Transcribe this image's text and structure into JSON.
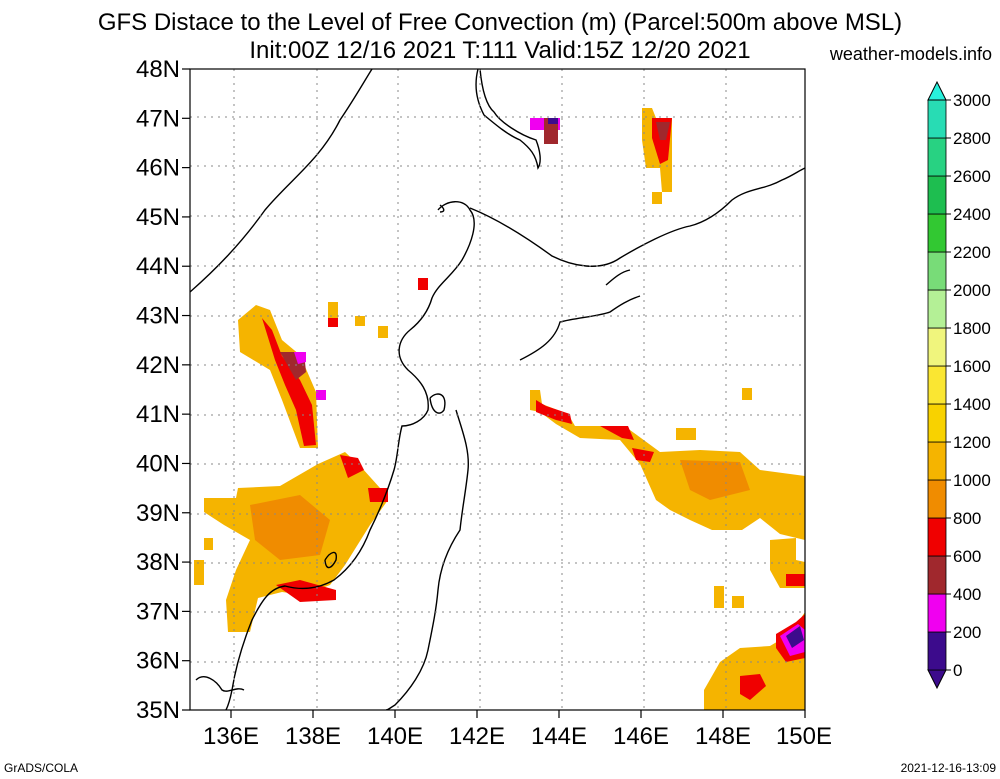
{
  "title_line1": "GFS Distace to the Level of Free Convection (m) (Parcel:500m above MSL)",
  "title_line2": "Init:00Z 12/16 2021 T:111 Valid:15Z 12/20 2021",
  "site": "weather-models.info",
  "footer_left": "GrADS/COLA",
  "footer_right": "2021-12-16-13:09",
  "lat_labels": [
    "48N",
    "47N",
    "46N",
    "45N",
    "44N",
    "43N",
    "42N",
    "41N",
    "40N",
    "39N",
    "38N",
    "37N",
    "36N",
    "35N"
  ],
  "lon_labels": [
    "136E",
    "138E",
    "140E",
    "142E",
    "144E",
    "146E",
    "148E"
  ],
  "lon_label_last": "150E",
  "colorbar": {
    "labels": [
      "0",
      "200",
      "400",
      "600",
      "800",
      "1000",
      "1200",
      "1400",
      "1600",
      "1800",
      "2000",
      "2200",
      "2400",
      "2600",
      "2800",
      "3000"
    ],
    "colors": [
      "#3c0b8c",
      "#f000f0",
      "#a0282d",
      "#f00000",
      "#f08c00",
      "#f5b400",
      "#f8d200",
      "#fae632",
      "#f0f57d",
      "#b4f096",
      "#78dc78",
      "#32c832",
      "#1ebe50",
      "#28d282",
      "#28dcb4",
      "#28f0dc"
    ]
  }
}
